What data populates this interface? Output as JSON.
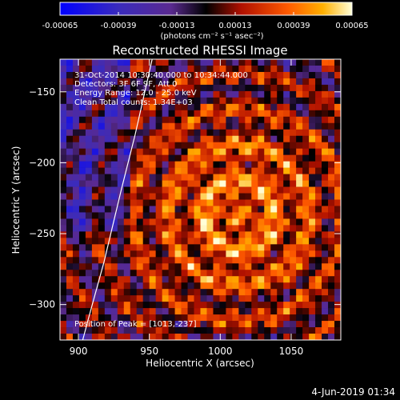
{
  "colorbar": {
    "tick_labels": [
      "-0.00065",
      "-0.00039",
      "-0.00013",
      "0.00013",
      "0.00039",
      "0.00065"
    ],
    "unit_label": "(photons cm⁻² s⁻¹ asec⁻²)",
    "range": [
      -0.00065,
      0.00065
    ]
  },
  "chart_data": {
    "type": "heatmap",
    "title": "Reconstructed RHESSI Image",
    "xlabel": "Heliocentric X (arcsec)",
    "ylabel": "Heliocentric Y (arcsec)",
    "xlim": [
      887,
      1085
    ],
    "ylim": [
      -325,
      -127
    ],
    "x_ticks": [
      900,
      950,
      1000,
      1050
    ],
    "y_ticks": [
      -150,
      -200,
      -250,
      -300
    ],
    "x_tick_labels": [
      "900",
      "950",
      "1000",
      "1050"
    ],
    "y_tick_labels": [
      "−150",
      "−200",
      "−250",
      "−300"
    ],
    "peak": [
      1013,
      -237
    ],
    "annotations": [
      "31-Oct-2014 10:30:40.000 to 10:34:44.000",
      "Detectors: 3F 6F 9F, Att 0",
      "Energy Range: 12.0 - 25.0 keV",
      "Clean    Total counts: 1.34E+03"
    ],
    "peak_label": "Position of Peak = [1013,-237]",
    "limb": [
      [
        952,
        -127
      ],
      [
        940,
        -180
      ],
      [
        930,
        -220
      ],
      [
        918,
        -270
      ],
      [
        907,
        -310
      ],
      [
        903,
        -325
      ]
    ]
  },
  "footer": {
    "timestamp": "4-Jun-2019 01:34"
  }
}
